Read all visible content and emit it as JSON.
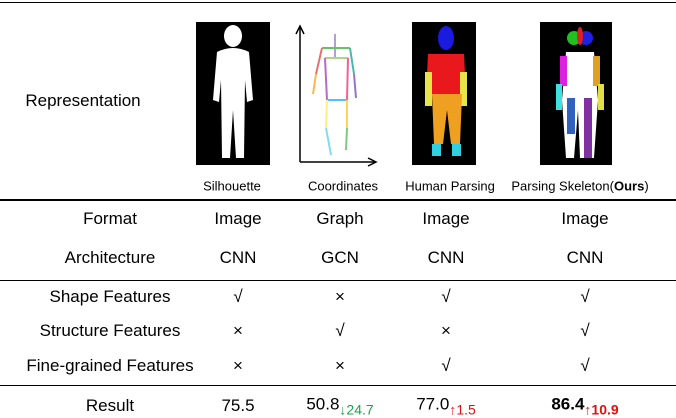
{
  "representation_row": {
    "label": "Representation",
    "captions": [
      "Silhouette",
      "Coordinates",
      "Human Parsing",
      {
        "text": "Parsing Skeleton(",
        "bold": "Ours",
        "end": ")"
      }
    ]
  },
  "table": {
    "rows": [
      [
        "Format",
        "Image",
        "Graph",
        "Image",
        "Image"
      ],
      [
        "Architecture",
        "CNN",
        "GCN",
        "CNN",
        "CNN"
      ],
      [
        "Shape Features",
        "√",
        "×",
        "√",
        "√"
      ],
      [
        "Structure Features",
        "×",
        "√",
        "×",
        "√"
      ],
      [
        "Fine-grained Features",
        "×",
        "×",
        "√",
        "√"
      ]
    ],
    "result": {
      "label": "Result",
      "cells": [
        {
          "value": "75.5"
        },
        {
          "value": "50.8",
          "delta": "↓24.7"
        },
        {
          "value": "77.0",
          "delta": "↑1.5"
        },
        {
          "value": "86.4",
          "delta": "↑10.9"
        }
      ]
    }
  }
}
